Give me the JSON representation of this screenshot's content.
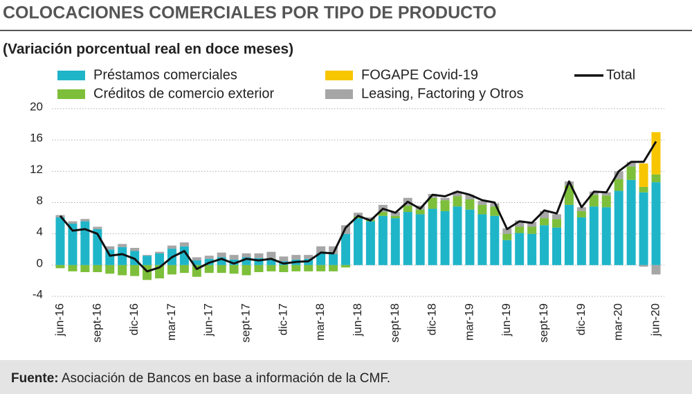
{
  "chart_data": {
    "type": "bar",
    "stacked": true,
    "title": "COLOCACIONES COMERCIALES POR TIPO DE PRODUCTO",
    "subtitle": "(Variación porcentual real en doce meses)",
    "categories": [
      "jun-16",
      null,
      null,
      "sept-16",
      null,
      null,
      "dic-16",
      null,
      null,
      "mar-17",
      null,
      null,
      "jun-17",
      null,
      null,
      "sept-17",
      null,
      null,
      "dic-17",
      null,
      null,
      "mar-18",
      null,
      null,
      "jun-18",
      null,
      null,
      "sept-18",
      null,
      null,
      "dic-18",
      null,
      null,
      "mar-19",
      null,
      null,
      "jun-19",
      null,
      null,
      "sept-19",
      null,
      null,
      "dic-19",
      null,
      null,
      "mar-20",
      null,
      null,
      "jun-20"
    ],
    "series": [
      {
        "name": "Préstamos comerciales",
        "color": "#1fb5c9",
        "values": [
          6.1,
          5.3,
          5.6,
          4.6,
          2.0,
          2.3,
          1.8,
          1.2,
          1.5,
          2.1,
          2.4,
          0.6,
          0.8,
          1.0,
          0.7,
          1.0,
          0.9,
          0.8,
          0.5,
          0.7,
          0.8,
          1.5,
          1.4,
          4.0,
          6.0,
          5.6,
          6.3,
          6.0,
          6.8,
          6.5,
          7.2,
          6.9,
          7.5,
          7.1,
          6.5,
          6.3,
          3.2,
          4.1,
          4.0,
          5.1,
          4.8,
          7.7,
          6.1,
          7.5,
          7.4,
          9.5,
          10.9,
          9.3,
          10.6
        ]
      },
      {
        "name": "Créditos de comercio exterior",
        "color": "#7dbf3a",
        "values": [
          -0.4,
          -0.8,
          -0.9,
          -0.9,
          -1.1,
          -1.3,
          -1.4,
          -1.9,
          -1.7,
          -1.2,
          -1.0,
          -1.5,
          -1.0,
          -1.0,
          -1.1,
          -1.3,
          -0.9,
          -0.8,
          -0.9,
          -0.8,
          -0.8,
          -0.8,
          -0.8,
          -0.3,
          0.2,
          0.2,
          0.5,
          0.3,
          0.8,
          0.6,
          1.4,
          1.4,
          1.3,
          1.3,
          1.2,
          1.2,
          0.8,
          0.8,
          0.9,
          0.9,
          1.1,
          2.5,
          0.8,
          1.5,
          1.5,
          1.5,
          1.7,
          0.7,
          1.0
        ]
      },
      {
        "name": "FOGAPE Covid-19",
        "color": "#f7c600",
        "values": [
          0,
          0,
          0,
          0,
          0,
          0,
          0,
          0,
          0,
          0,
          0,
          0,
          0,
          0,
          0,
          0,
          0,
          0,
          0,
          0,
          0,
          0,
          0,
          0,
          0,
          0,
          0,
          0,
          0,
          0,
          0,
          0,
          0,
          0,
          0,
          0,
          0,
          0,
          0,
          0,
          0,
          0,
          0,
          0,
          0,
          0,
          0,
          3.0,
          5.4
        ]
      },
      {
        "name": "Leasing, Factoring y Otros",
        "color": "#a6a6a6",
        "values": [
          0.3,
          0.3,
          0.3,
          0.3,
          0.4,
          0.4,
          0.4,
          0.1,
          0.2,
          0.4,
          0.5,
          0.4,
          0.4,
          0.6,
          0.6,
          0.5,
          0.6,
          0.9,
          0.6,
          0.6,
          0.5,
          0.9,
          1.0,
          1.1,
          0.5,
          0.3,
          0.9,
          0.5,
          1.0,
          0.5,
          0.5,
          0.3,
          0.6,
          0.6,
          0.5,
          0.4,
          0.7,
          0.8,
          0.6,
          0.9,
          0.6,
          0.5,
          0.5,
          0.4,
          0.4,
          1.0,
          0.6,
          -0.2,
          -1.2
        ]
      },
      {
        "name": "Total",
        "color": "#111111",
        "type": "line",
        "values": [
          6.3,
          4.4,
          4.6,
          4.0,
          1.2,
          1.4,
          0.8,
          -0.8,
          -0.3,
          1.0,
          1.8,
          -0.5,
          0.3,
          0.8,
          0.2,
          0.8,
          0.6,
          0.8,
          0.2,
          0.4,
          0.5,
          1.6,
          1.5,
          4.8,
          6.3,
          5.7,
          7.2,
          6.7,
          8.1,
          7.2,
          9.0,
          8.8,
          9.4,
          9.0,
          8.3,
          8.0,
          4.6,
          5.6,
          5.4,
          7.0,
          6.6,
          10.7,
          7.4,
          9.4,
          9.3,
          12.0,
          13.2,
          13.2,
          15.8
        ]
      }
    ],
    "ylim": [
      -4,
      20
    ],
    "yticks": [
      -4,
      0,
      4,
      8,
      12,
      16,
      20
    ],
    "grid": true
  },
  "source": {
    "label": "Fuente:",
    "text": "Asociación de Bancos en base a información de la CMF."
  }
}
